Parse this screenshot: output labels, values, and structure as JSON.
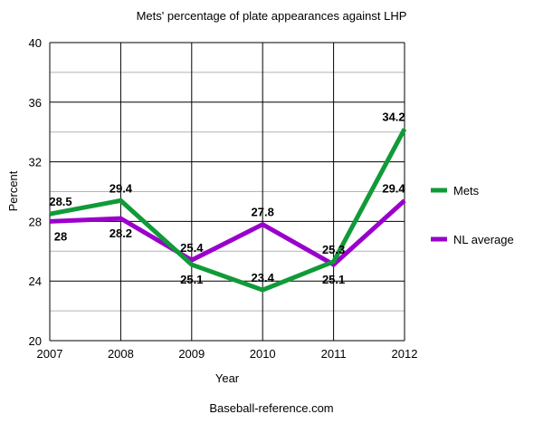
{
  "chart_data": {
    "type": "line",
    "title": "Mets' percentage of plate appearances against LHP",
    "xlabel": "Year",
    "ylabel": "Percent",
    "source": "Baseball-reference.com",
    "x": [
      "2007",
      "2008",
      "2009",
      "2010",
      "2011",
      "2012"
    ],
    "ylim": [
      20,
      40
    ],
    "yticks": [
      "20",
      "24",
      "28",
      "32",
      "36",
      "40"
    ],
    "grid": true,
    "legend_position": "right",
    "series": [
      {
        "name": "Mets",
        "color": "#109a38",
        "values": [
          28.5,
          29.4,
          25.1,
          23.4,
          25.3,
          34.2
        ]
      },
      {
        "name": "NL average",
        "color": "#9900cc",
        "values": [
          28,
          28.2,
          25.4,
          27.8,
          25.1,
          29.4
        ]
      }
    ]
  }
}
